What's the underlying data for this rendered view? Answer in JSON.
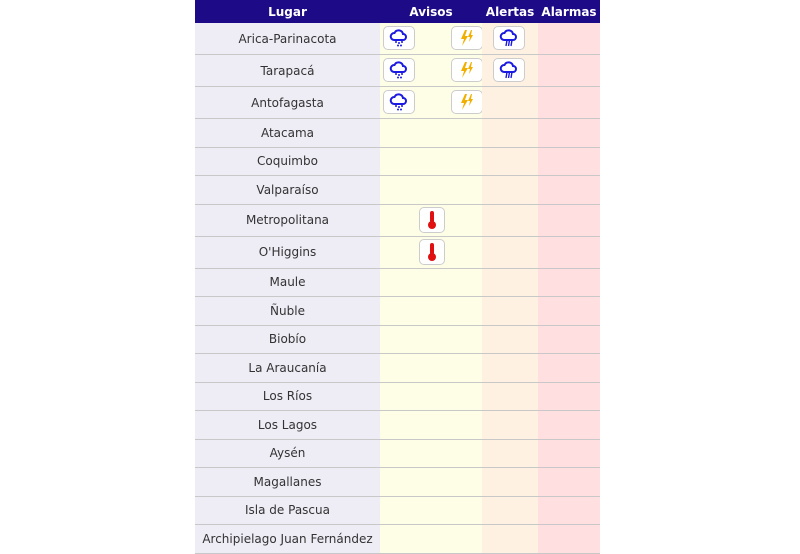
{
  "header": {
    "lugar": "Lugar",
    "avisos": "Avisos",
    "alertas": "Alertas",
    "alarmas": "Alarmas"
  },
  "colors": {
    "header": "#1d0a86",
    "lugar": "#eeecf5",
    "avisos": "#fefee6",
    "alertas": "#fff1e1",
    "alarmas": "#ffdfe0",
    "rain": "#1a1ae0",
    "storm": "#f0b000",
    "heat": "#e01010"
  },
  "rows": [
    {
      "name": "Arica-Parinacota",
      "avisos": [
        "rain-snow-icon",
        "thunderstorm-icon"
      ],
      "alertas": [
        "heavy-rain-icon"
      ]
    },
    {
      "name": "Tarapacá",
      "avisos": [
        "rain-snow-icon",
        "thunderstorm-icon"
      ],
      "alertas": [
        "heavy-rain-icon"
      ]
    },
    {
      "name": "Antofagasta",
      "avisos": [
        "rain-snow-icon",
        "thunderstorm-icon"
      ],
      "alertas": []
    },
    {
      "name": "Atacama",
      "avisos": [],
      "alertas": []
    },
    {
      "name": "Coquimbo",
      "avisos": [],
      "alertas": []
    },
    {
      "name": "Valparaíso",
      "avisos": [],
      "alertas": []
    },
    {
      "name": "Metropolitana",
      "avisos": [
        "thermometer-icon"
      ],
      "alertas": []
    },
    {
      "name": "O'Higgins",
      "avisos": [
        "thermometer-icon"
      ],
      "alertas": []
    },
    {
      "name": "Maule",
      "avisos": [],
      "alertas": []
    },
    {
      "name": "Ñuble",
      "avisos": [],
      "alertas": []
    },
    {
      "name": "Biobío",
      "avisos": [],
      "alertas": []
    },
    {
      "name": "La Araucanía",
      "avisos": [],
      "alertas": []
    },
    {
      "name": "Los Ríos",
      "avisos": [],
      "alertas": []
    },
    {
      "name": "Los Lagos",
      "avisos": [],
      "alertas": []
    },
    {
      "name": "Aysén",
      "avisos": [],
      "alertas": []
    },
    {
      "name": "Magallanes",
      "avisos": [],
      "alertas": []
    },
    {
      "name": "Isla de Pascua",
      "avisos": [],
      "alertas": []
    },
    {
      "name": "Archipielago Juan Fernández",
      "avisos": [],
      "alertas": []
    }
  ]
}
